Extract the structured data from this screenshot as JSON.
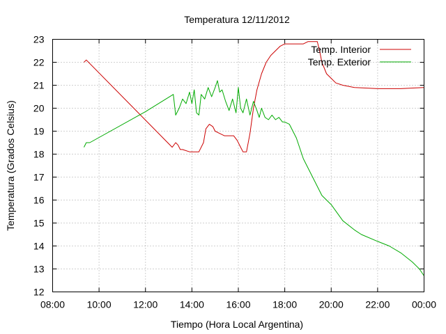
{
  "chart_data": {
    "type": "line",
    "title": "Temperatura 12/11/2012",
    "xlabel": "Tiempo (Hora Local Argentina)",
    "ylabel": "Temperatura (Grados Celsius)",
    "xlim": [
      8,
      24
    ],
    "ylim": [
      12,
      23
    ],
    "x_ticks": [
      8,
      10,
      12,
      14,
      16,
      18,
      20,
      22,
      24
    ],
    "x_tick_labels": [
      "08:00",
      "10:00",
      "12:00",
      "14:00",
      "16:00",
      "18:00",
      "20:00",
      "22:00",
      "00:00"
    ],
    "y_ticks": [
      12,
      13,
      14,
      15,
      16,
      17,
      18,
      19,
      20,
      21,
      22,
      23
    ],
    "y_tick_labels": [
      "12",
      "13",
      "14",
      "15",
      "16",
      "17",
      "18",
      "19",
      "20",
      "21",
      "22",
      "23"
    ],
    "grid": true,
    "legend_position": "top-right",
    "series": [
      {
        "name": "Temp. Interior",
        "color": "#cc0000",
        "x": [
          9.35,
          9.45,
          13.15,
          13.3,
          13.4,
          13.5,
          13.6,
          13.9,
          14.3,
          14.5,
          14.6,
          14.75,
          14.9,
          15.0,
          15.2,
          15.4,
          15.8,
          15.95,
          16.1,
          16.2,
          16.35,
          16.5,
          16.65,
          16.8,
          17.0,
          17.2,
          17.4,
          17.6,
          17.8,
          18.0,
          18.2,
          18.5,
          18.8,
          19.0,
          19.2,
          19.4,
          19.5,
          19.6,
          19.8,
          20.0,
          20.2,
          20.5,
          21.0,
          22.0,
          23.0,
          24.0
        ],
        "y": [
          22.0,
          22.1,
          18.3,
          18.5,
          18.4,
          18.2,
          18.2,
          18.1,
          18.1,
          18.5,
          19.1,
          19.3,
          19.2,
          19.0,
          18.9,
          18.8,
          18.8,
          18.6,
          18.3,
          18.1,
          18.1,
          18.9,
          20.0,
          20.8,
          21.5,
          22.0,
          22.3,
          22.5,
          22.7,
          22.8,
          22.8,
          22.8,
          22.8,
          22.9,
          22.9,
          22.9,
          22.5,
          22.0,
          21.5,
          21.3,
          21.1,
          21.0,
          20.9,
          20.85,
          20.85,
          20.9
        ]
      },
      {
        "name": "Temp. Exterior",
        "color": "#00aa00",
        "x": [
          9.35,
          9.45,
          9.6,
          12.0,
          13.2,
          13.3,
          13.45,
          13.6,
          13.75,
          13.9,
          14.0,
          14.1,
          14.2,
          14.3,
          14.4,
          14.55,
          14.7,
          14.85,
          15.0,
          15.1,
          15.2,
          15.3,
          15.45,
          15.6,
          15.75,
          15.9,
          16.0,
          16.1,
          16.2,
          16.35,
          16.5,
          16.65,
          16.8,
          16.9,
          17.0,
          17.15,
          17.3,
          17.45,
          17.6,
          17.75,
          17.9,
          18.0,
          18.2,
          18.5,
          18.8,
          19.2,
          19.6,
          20.0,
          20.5,
          21.0,
          21.3,
          22.0,
          22.5,
          23.0,
          23.5,
          23.8,
          24.0
        ],
        "y": [
          18.3,
          18.5,
          18.5,
          19.85,
          20.6,
          19.7,
          20.0,
          20.4,
          20.2,
          20.7,
          20.2,
          20.8,
          19.8,
          19.7,
          20.6,
          20.4,
          20.9,
          20.5,
          20.9,
          21.2,
          20.7,
          20.8,
          20.3,
          19.9,
          20.4,
          19.8,
          20.9,
          20.0,
          19.8,
          20.4,
          19.7,
          20.3,
          19.9,
          19.6,
          20.0,
          19.6,
          19.5,
          19.7,
          19.5,
          19.6,
          19.4,
          19.4,
          19.3,
          18.7,
          17.8,
          17.0,
          16.2,
          15.8,
          15.1,
          14.7,
          14.5,
          14.2,
          14.0,
          13.7,
          13.3,
          13.0,
          12.7
        ]
      }
    ]
  }
}
